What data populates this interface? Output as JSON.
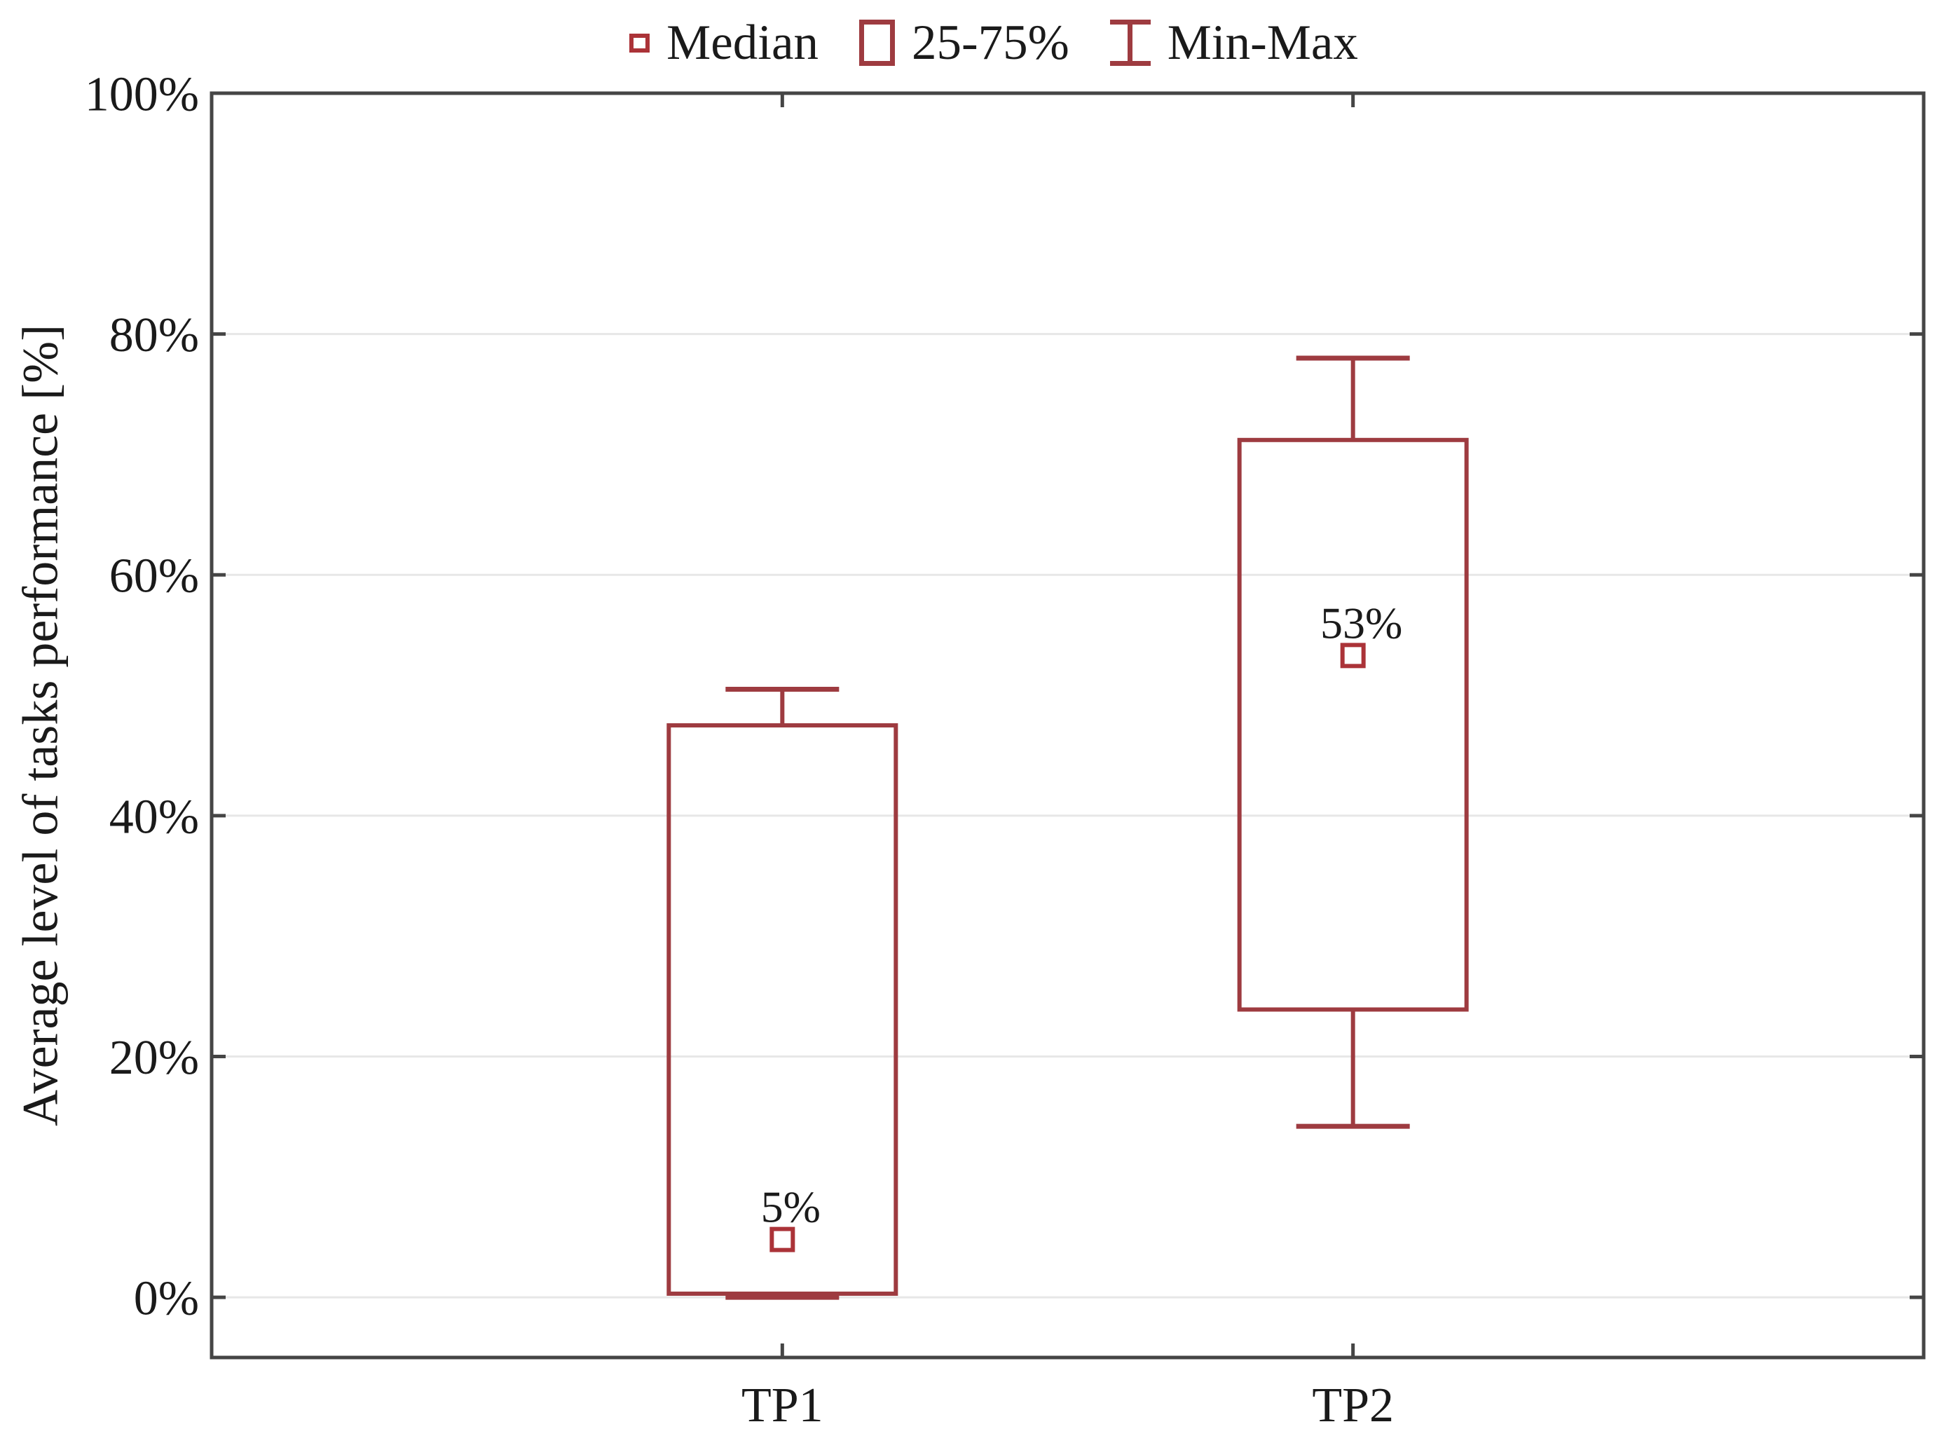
{
  "page": {
    "background": "#ffffff"
  },
  "legend": {
    "items": [
      {
        "label": "Median",
        "marker": "median-square"
      },
      {
        "label": "25-75%",
        "marker": "iqr-box"
      },
      {
        "label": "Min-Max",
        "marker": "minmax-whisker"
      }
    ]
  },
  "chart_data": {
    "type": "boxplot",
    "title": "",
    "xlabel": "",
    "ylabel": "Average level of tasks performance [%]",
    "categories": [
      "TP1",
      "TP2"
    ],
    "ytick_values": [
      0,
      20,
      40,
      60,
      80,
      100
    ],
    "ytick_labels": [
      "0%",
      "20%",
      "40%",
      "60%",
      "80%",
      "100%"
    ],
    "ylim": [
      -5,
      100
    ],
    "grid": "horizontal",
    "legend_position": "top-center",
    "series": [
      {
        "category": "TP1",
        "min": 0,
        "q1": 0.3,
        "median": 4.8,
        "q3": 47.5,
        "max": 50.5,
        "median_label": "5%"
      },
      {
        "category": "TP2",
        "min": 14.2,
        "q1": 23.9,
        "median": 53.3,
        "q3": 71.2,
        "max": 78.0,
        "median_label": "53%"
      }
    ],
    "colors": {
      "box_stroke": "#9e3b40",
      "median_marker": "#ab3338",
      "grid_line": "#e7e7e7",
      "axis_frame": "#454545",
      "text": "#1a1a1a"
    }
  }
}
